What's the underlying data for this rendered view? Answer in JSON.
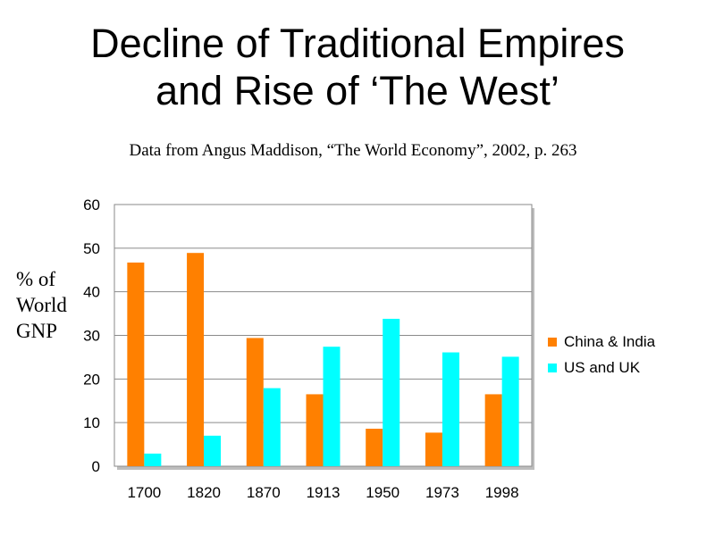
{
  "slide": {
    "title_line1": "Decline of Traditional Empires",
    "title_line2": "and Rise of ‘The West’",
    "subtitle": "Data from Angus Maddison, “The World Economy”, 2002, p. 263"
  },
  "chart_data": {
    "type": "bar",
    "categories": [
      "1700",
      "1820",
      "1870",
      "1913",
      "1950",
      "1973",
      "1998"
    ],
    "series": [
      {
        "name": "China & India",
        "values": [
          46.7,
          48.9,
          29.4,
          16.5,
          8.6,
          7.7,
          16.5
        ],
        "color": "#ff8000"
      },
      {
        "name": "US and UK",
        "values": [
          2.9,
          7.0,
          17.9,
          27.4,
          33.8,
          26.1,
          25.1
        ],
        "color": "#00ffff"
      }
    ],
    "ylabel_lines": [
      "% of",
      "World",
      "GNP"
    ],
    "ylim": [
      0,
      60
    ],
    "yticks": [
      "0",
      "10",
      "20",
      "30",
      "40",
      "50",
      "60"
    ],
    "grid": true,
    "legend_position": "right"
  }
}
